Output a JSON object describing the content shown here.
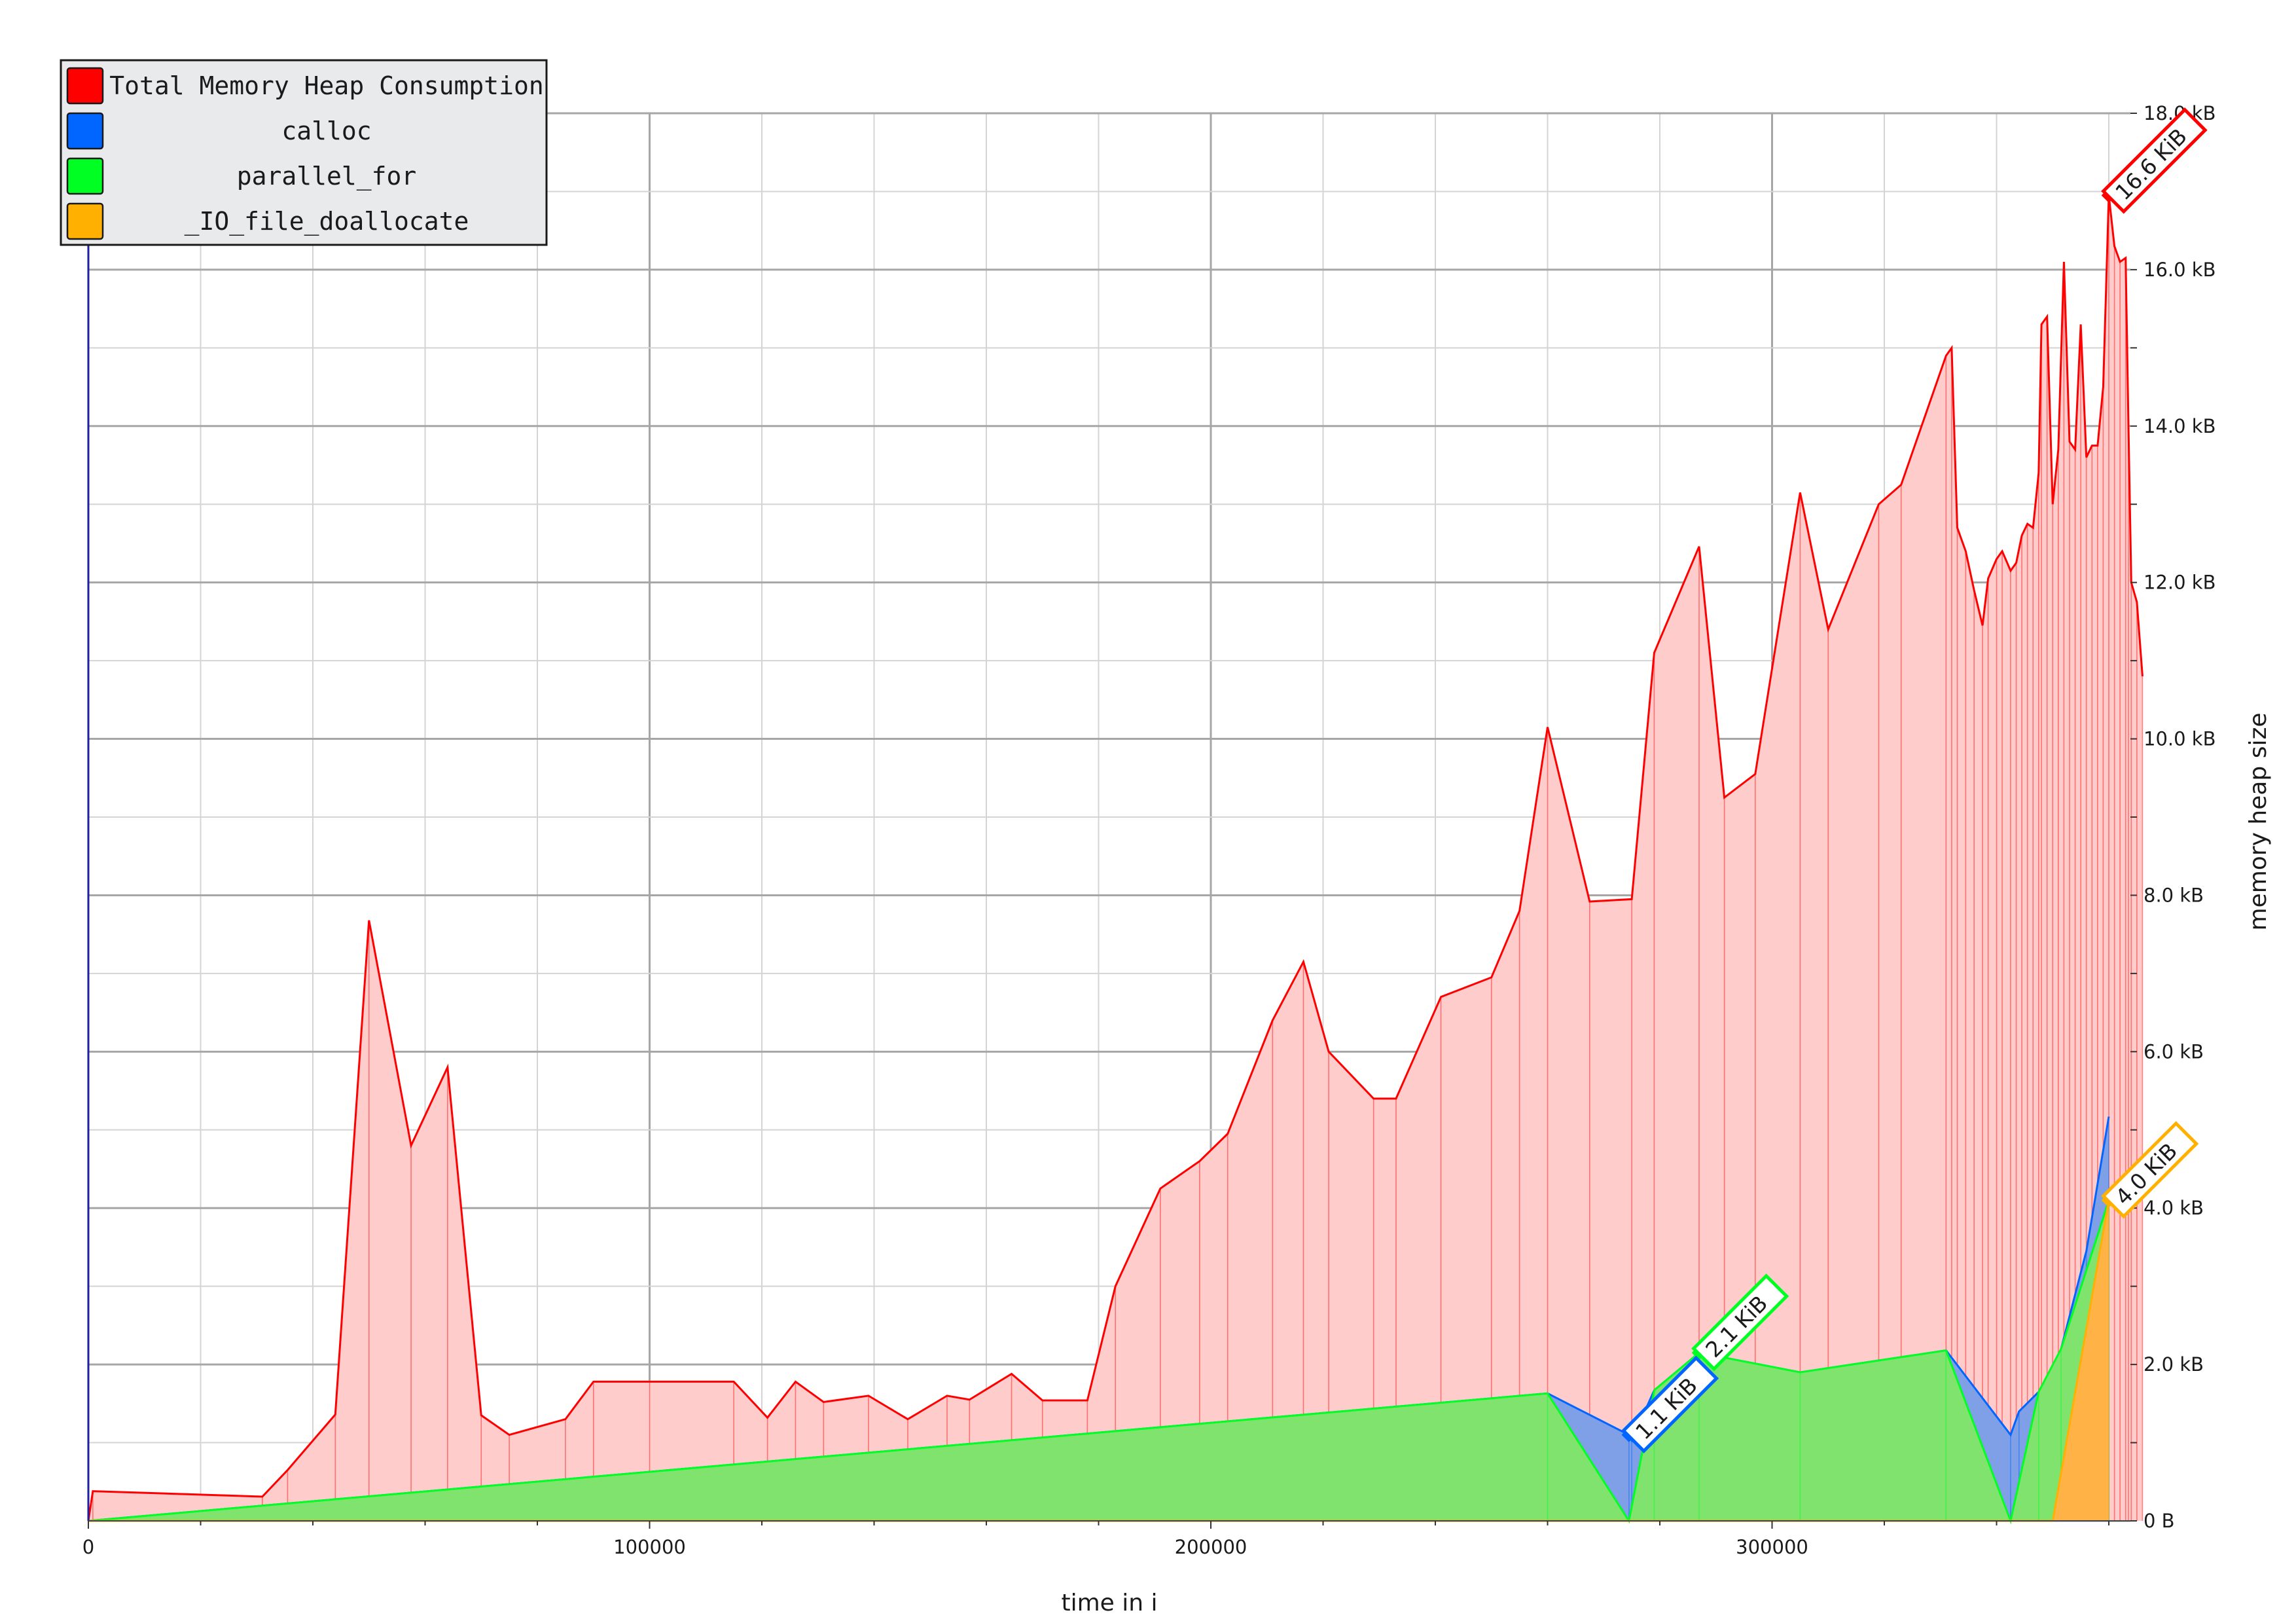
{
  "chart_data": {
    "type": "area",
    "xlabel": "time in i",
    "ylabel": "memory heap size",
    "xlim": [
      0,
      364000
    ],
    "ylim": [
      0,
      18000
    ],
    "x_ticks": [
      {
        "value": 0,
        "label": "0"
      },
      {
        "value": 100000,
        "label": "100000"
      },
      {
        "value": 200000,
        "label": "200000"
      },
      {
        "value": 300000,
        "label": "300000"
      }
    ],
    "y_ticks": [
      {
        "value": 0,
        "label": "0 B"
      },
      {
        "value": 2000,
        "label": "2.0 kB"
      },
      {
        "value": 4000,
        "label": "4.0 kB"
      },
      {
        "value": 6000,
        "label": "6.0 kB"
      },
      {
        "value": 8000,
        "label": "8.0 kB"
      },
      {
        "value": 10000,
        "label": "10.0 kB"
      },
      {
        "value": 12000,
        "label": "12.0 kB"
      },
      {
        "value": 14000,
        "label": "14.0 kB"
      },
      {
        "value": 16000,
        "label": "16.0 kB"
      },
      {
        "value": 18000,
        "label": "18.0 kB"
      }
    ],
    "grid": true,
    "legend_position": "top-left",
    "series": [
      {
        "name": "Total Memory Heap Consumption",
        "color": "#ff0000",
        "fill": "#ffcccc",
        "points": [
          [
            0,
            0
          ],
          [
            800,
            380
          ],
          [
            31000,
            310
          ],
          [
            35500,
            650
          ],
          [
            44000,
            1360
          ],
          [
            50000,
            7680
          ],
          [
            57500,
            4800
          ],
          [
            64000,
            5800
          ],
          [
            70000,
            1350
          ],
          [
            75000,
            1100
          ],
          [
            85000,
            1300
          ],
          [
            90000,
            1780
          ],
          [
            100000,
            1780
          ],
          [
            115000,
            1780
          ],
          [
            121000,
            1320
          ],
          [
            126000,
            1780
          ],
          [
            131000,
            1520
          ],
          [
            139000,
            1600
          ],
          [
            146000,
            1300
          ],
          [
            153000,
            1600
          ],
          [
            157000,
            1550
          ],
          [
            164500,
            1880
          ],
          [
            170000,
            1540
          ],
          [
            178000,
            1540
          ],
          [
            183000,
            3000
          ],
          [
            191000,
            4250
          ],
          [
            198000,
            4600
          ],
          [
            203000,
            4950
          ],
          [
            211000,
            6400
          ],
          [
            216500,
            7150
          ],
          [
            221000,
            6000
          ],
          [
            229000,
            5400
          ],
          [
            233000,
            5400
          ],
          [
            241000,
            6700
          ],
          [
            250000,
            6950
          ],
          [
            255000,
            7800
          ],
          [
            260000,
            10150
          ],
          [
            267500,
            7920
          ],
          [
            275000,
            7950
          ],
          [
            279000,
            11100
          ],
          [
            287000,
            12460
          ],
          [
            291500,
            9250
          ],
          [
            297000,
            9550
          ],
          [
            305000,
            13150
          ],
          [
            310000,
            11400
          ],
          [
            319000,
            13000
          ],
          [
            323000,
            13250
          ],
          [
            331000,
            14900
          ],
          [
            332000,
            15000
          ],
          [
            333000,
            12700
          ],
          [
            334500,
            12400
          ],
          [
            336000,
            11900
          ],
          [
            337500,
            11450
          ],
          [
            338500,
            12050
          ],
          [
            340000,
            12300
          ],
          [
            341000,
            12400
          ],
          [
            342500,
            12150
          ],
          [
            343500,
            12250
          ],
          [
            344500,
            12600
          ],
          [
            345500,
            12750
          ],
          [
            346500,
            12700
          ],
          [
            347500,
            13400
          ],
          [
            348000,
            15300
          ],
          [
            349000,
            15400
          ],
          [
            350000,
            13000
          ],
          [
            351000,
            13700
          ],
          [
            352000,
            16100
          ],
          [
            353000,
            13800
          ],
          [
            354000,
            13700
          ],
          [
            355000,
            15300
          ],
          [
            356000,
            13600
          ],
          [
            357000,
            13750
          ],
          [
            358000,
            13750
          ],
          [
            359000,
            14500
          ],
          [
            360000,
            16950
          ],
          [
            361000,
            16300
          ],
          [
            362000,
            16100
          ],
          [
            363000,
            16150
          ],
          [
            363500,
            14000
          ],
          [
            364000,
            12000
          ],
          [
            365000,
            11750
          ],
          [
            366000,
            10800
          ]
        ]
      },
      {
        "name": "calloc",
        "color": "#0066ff",
        "fill": "#7f9fe6",
        "points": [
          [
            0,
            0
          ],
          [
            260000,
            1630
          ],
          [
            274500,
            1100
          ],
          [
            275000,
            1030
          ],
          [
            279000,
            1670
          ],
          [
            287000,
            2150
          ],
          [
            305000,
            1900
          ],
          [
            331000,
            2180
          ],
          [
            342500,
            1100
          ],
          [
            344000,
            1400
          ],
          [
            347500,
            1650
          ],
          [
            348500,
            1640
          ],
          [
            351500,
            2200
          ],
          [
            356000,
            3450
          ],
          [
            360000,
            5170
          ]
        ]
      },
      {
        "name": "parallel_for",
        "color": "#00ff22",
        "fill": "#80e36e",
        "points": [
          [
            0,
            0
          ],
          [
            260000,
            1630
          ],
          [
            274500,
            0
          ],
          [
            279000,
            1670
          ],
          [
            287000,
            2150
          ],
          [
            305000,
            1900
          ],
          [
            331000,
            2180
          ],
          [
            342500,
            0
          ],
          [
            347500,
            1650
          ],
          [
            351500,
            2200
          ],
          [
            360000,
            4100
          ]
        ]
      },
      {
        "name": "_IO_file_doallocate",
        "color": "#ffb000",
        "fill": "#ffb347",
        "points": [
          [
            0,
            0
          ],
          [
            349000,
            0
          ],
          [
            350000,
            0
          ],
          [
            360000,
            4100
          ]
        ]
      }
    ],
    "annotations": [
      {
        "series": "Total Memory Heap Consumption",
        "x": 360000,
        "y": 16950,
        "label": "16.6 KiB",
        "color": "#ff0000"
      },
      {
        "series": "parallel_for",
        "x": 287000,
        "y": 2150,
        "label": "2.1 KiB",
        "color": "#00ff22"
      },
      {
        "series": "calloc",
        "x": 274500,
        "y": 1100,
        "label": "1.1 KiB",
        "color": "#0066ff"
      },
      {
        "series": "_IO_file_doallocate",
        "x": 360000,
        "y": 4100,
        "label": "4.0 KiB",
        "color": "#ffb000"
      }
    ]
  }
}
